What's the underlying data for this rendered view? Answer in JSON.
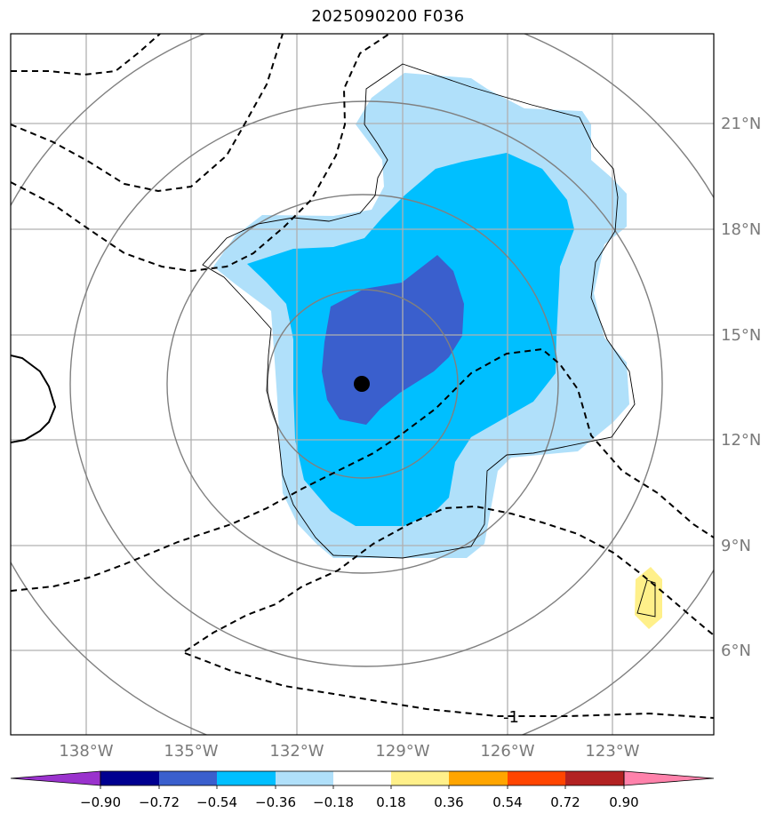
{
  "title": "2025090200 F036",
  "map": {
    "lat_labels": [
      "21°N",
      "18°N",
      "15°N",
      "12°N",
      "9°N",
      "6°N"
    ],
    "lon_labels": [
      "138°W",
      "135°W",
      "132°W",
      "129°W",
      "126°W",
      "123°W"
    ],
    "center_marker": {
      "lat": 13.6,
      "lon": "130.1°W"
    },
    "contour_label": "-1",
    "colors": {
      "grid": "#b0b0b0",
      "range_rings": "#808080",
      "fill_light_blue": "#b0e0fa",
      "fill_cyan": "#00bfff",
      "fill_royal_blue": "#3a5fcd",
      "fill_light_yellow": "#fff08a",
      "contours": "#000000"
    }
  },
  "colorbar": {
    "tick_labels": [
      "−0.90",
      "−0.72",
      "−0.54",
      "−0.36",
      "−0.18",
      "0.18",
      "0.36",
      "0.54",
      "0.72",
      "0.90"
    ],
    "colors": [
      "#9a32cd",
      "#000090",
      "#3a5fcd",
      "#00bfff",
      "#b0e0fa",
      "#ffffff",
      "#fff08a",
      "#ffa500",
      "#ff4500",
      "#b22222",
      "#ff82ab"
    ]
  }
}
